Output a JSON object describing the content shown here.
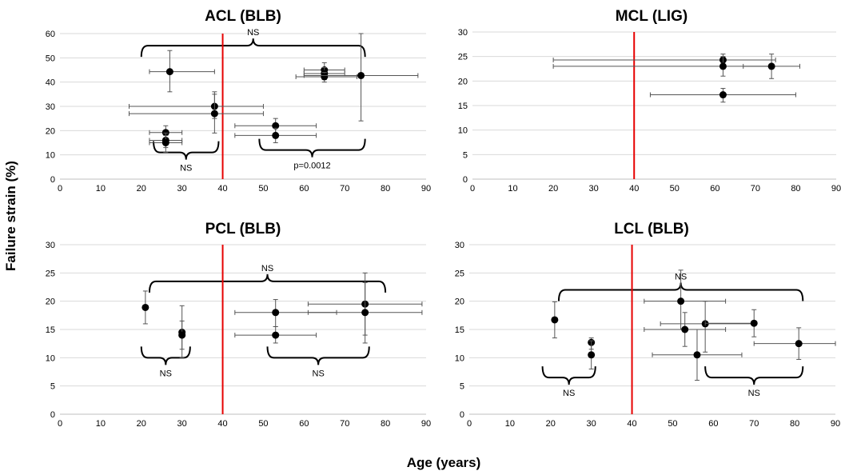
{
  "figure": {
    "xlabel": "Age (years)",
    "ylabel": "Failure strain (%)",
    "reference_line_age": 40,
    "reference_line_color": "#e60000",
    "marker_color": "#000000",
    "errorbar_color": "#555555",
    "grid_color": "#d9d9d9"
  },
  "chart_data": [
    {
      "type": "scatter",
      "id": "acl",
      "title": "ACL (BLB)",
      "xlabel": "Age (years)",
      "ylabel": "Failure strain (%)",
      "xlim": [
        0,
        90
      ],
      "xticks": [
        0,
        10,
        20,
        30,
        40,
        50,
        60,
        70,
        80,
        90
      ],
      "ylim": [
        0,
        60
      ],
      "yticks": [
        0,
        10,
        20,
        30,
        40,
        50,
        60
      ],
      "points": [
        {
          "x": 27,
          "y": 44.3,
          "xerr": [
            22,
            38
          ],
          "yerr": [
            36,
            53
          ]
        },
        {
          "x": 26,
          "y": 19.2,
          "xerr": [
            22,
            30
          ],
          "yerr": [
            16,
            22
          ]
        },
        {
          "x": 26,
          "y": 16.0,
          "xerr": [
            22,
            30
          ],
          "yerr": [
            13,
            19
          ]
        },
        {
          "x": 26,
          "y": 15.0,
          "xerr": [
            22,
            30
          ],
          "yerr": [
            11,
            18
          ]
        },
        {
          "x": 38,
          "y": 30.0,
          "xerr": [
            17,
            50
          ],
          "yerr": [
            25,
            36
          ]
        },
        {
          "x": 38,
          "y": 27.0,
          "xerr": [
            17,
            50
          ],
          "yerr": [
            19,
            35
          ]
        },
        {
          "x": 53,
          "y": 22.0,
          "xerr": [
            43,
            63
          ],
          "yerr": [
            19,
            25
          ]
        },
        {
          "x": 53,
          "y": 18.0,
          "xerr": [
            43,
            63
          ],
          "yerr": [
            15,
            21
          ]
        },
        {
          "x": 65,
          "y": 45.0,
          "xerr": [
            60,
            70
          ],
          "yerr": [
            42,
            48
          ]
        },
        {
          "x": 65,
          "y": 43.5,
          "xerr": [
            60,
            70
          ],
          "yerr": [
            41,
            46
          ]
        },
        {
          "x": 65,
          "y": 42.2,
          "xerr": [
            58,
            73
          ],
          "yerr": [
            40,
            44
          ]
        },
        {
          "x": 74,
          "y": 42.7,
          "xerr": [
            60,
            88
          ],
          "yerr": [
            24,
            60
          ]
        }
      ],
      "brackets": [
        {
          "label": "NS",
          "x1": 20,
          "x2": 75,
          "y": 55,
          "direction": "up"
        },
        {
          "label": "NS",
          "x1": 23,
          "x2": 39,
          "y": 11,
          "direction": "down"
        },
        {
          "label": "p=0.0012",
          "x1": 49,
          "x2": 75,
          "y": 12,
          "direction": "down"
        }
      ]
    },
    {
      "type": "scatter",
      "id": "mcl",
      "title": "MCL (LIG)",
      "xlabel": "Age (years)",
      "ylabel": "Failure strain (%)",
      "xlim": [
        0,
        90
      ],
      "xticks": [
        0,
        10,
        20,
        30,
        40,
        50,
        60,
        70,
        80,
        90
      ],
      "ylim": [
        0,
        30
      ],
      "yticks": [
        0,
        5,
        10,
        15,
        20,
        25,
        30
      ],
      "points": [
        {
          "x": 62,
          "y": 24.3,
          "xerr": [
            20,
            75
          ],
          "yerr": [
            23,
            25.5
          ]
        },
        {
          "x": 62,
          "y": 23.0,
          "xerr": [
            20,
            74
          ],
          "yerr": [
            21,
            25
          ]
        },
        {
          "x": 74,
          "y": 23.0,
          "xerr": [
            67,
            81
          ],
          "yerr": [
            20.5,
            25.5
          ]
        },
        {
          "x": 62,
          "y": 17.2,
          "xerr": [
            44,
            80
          ],
          "yerr": [
            15.7,
            18.5
          ]
        }
      ],
      "brackets": []
    },
    {
      "type": "scatter",
      "id": "pcl",
      "title": "PCL (BLB)",
      "xlabel": "Age (years)",
      "ylabel": "Failure strain (%)",
      "xlim": [
        0,
        90
      ],
      "xticks": [
        0,
        10,
        20,
        30,
        40,
        50,
        60,
        70,
        80,
        90
      ],
      "ylim": [
        0,
        30
      ],
      "yticks": [
        0,
        5,
        10,
        15,
        20,
        25,
        30
      ],
      "points": [
        {
          "x": 21,
          "y": 18.9,
          "xerr": [
            21,
            21
          ],
          "yerr": [
            16,
            21.8
          ]
        },
        {
          "x": 30,
          "y": 14.5,
          "xerr": [
            30,
            30
          ],
          "yerr": [
            10,
            19.2
          ]
        },
        {
          "x": 30,
          "y": 14.0,
          "xerr": [
            30,
            30
          ],
          "yerr": [
            11.5,
            16.5
          ]
        },
        {
          "x": 53,
          "y": 18.0,
          "xerr": [
            43,
            68
          ],
          "yerr": [
            15.5,
            20.3
          ]
        },
        {
          "x": 53,
          "y": 14.0,
          "xerr": [
            43,
            63
          ],
          "yerr": [
            12.6,
            15.5
          ]
        },
        {
          "x": 75,
          "y": 19.5,
          "xerr": [
            61,
            89
          ],
          "yerr": [
            14,
            25
          ]
        },
        {
          "x": 75,
          "y": 18.0,
          "xerr": [
            61,
            89
          ],
          "yerr": [
            12.6,
            23.3
          ]
        }
      ],
      "brackets": [
        {
          "label": "NS",
          "x1": 22,
          "x2": 80,
          "y": 23.5,
          "direction": "up"
        },
        {
          "label": "NS",
          "x1": 20,
          "x2": 32,
          "y": 10,
          "direction": "down"
        },
        {
          "label": "NS",
          "x1": 51,
          "x2": 76,
          "y": 10,
          "direction": "down"
        }
      ]
    },
    {
      "type": "scatter",
      "id": "lcl",
      "title": "LCL (BLB)",
      "xlabel": "Age (years)",
      "ylabel": "Failure strain (%)",
      "xlim": [
        0,
        90
      ],
      "xticks": [
        0,
        10,
        20,
        30,
        40,
        50,
        60,
        70,
        80,
        90
      ],
      "ylim": [
        0,
        30
      ],
      "yticks": [
        0,
        5,
        10,
        15,
        20,
        25,
        30
      ],
      "points": [
        {
          "x": 21,
          "y": 16.7,
          "xerr": [
            21,
            21
          ],
          "yerr": [
            13.5,
            19.9
          ]
        },
        {
          "x": 30,
          "y": 12.7,
          "xerr": [
            30,
            30
          ],
          "yerr": [
            11.5,
            13.5
          ]
        },
        {
          "x": 30,
          "y": 10.5,
          "xerr": [
            30,
            30
          ],
          "yerr": [
            8,
            13
          ]
        },
        {
          "x": 52,
          "y": 20.0,
          "xerr": [
            43,
            63
          ],
          "yerr": [
            15,
            25.5
          ]
        },
        {
          "x": 53,
          "y": 15.0,
          "xerr": [
            43,
            63
          ],
          "yerr": [
            12,
            18
          ]
        },
        {
          "x": 58,
          "y": 16.0,
          "xerr": [
            47,
            70
          ],
          "yerr": [
            11,
            20
          ]
        },
        {
          "x": 56,
          "y": 10.5,
          "xerr": [
            45,
            67
          ],
          "yerr": [
            6,
            15
          ]
        },
        {
          "x": 70,
          "y": 16.1,
          "xerr": [
            58,
            70
          ],
          "yerr": [
            13.7,
            18.5
          ]
        },
        {
          "x": 81,
          "y": 12.5,
          "xerr": [
            70,
            90
          ],
          "yerr": [
            9.7,
            15.3
          ]
        }
      ],
      "brackets": [
        {
          "label": "NS",
          "x1": 22,
          "x2": 82,
          "y": 22,
          "direction": "up"
        },
        {
          "label": "NS",
          "x1": 18,
          "x2": 31,
          "y": 6.5,
          "direction": "down"
        },
        {
          "label": "NS",
          "x1": 58,
          "x2": 82,
          "y": 6.5,
          "direction": "down"
        }
      ]
    }
  ]
}
